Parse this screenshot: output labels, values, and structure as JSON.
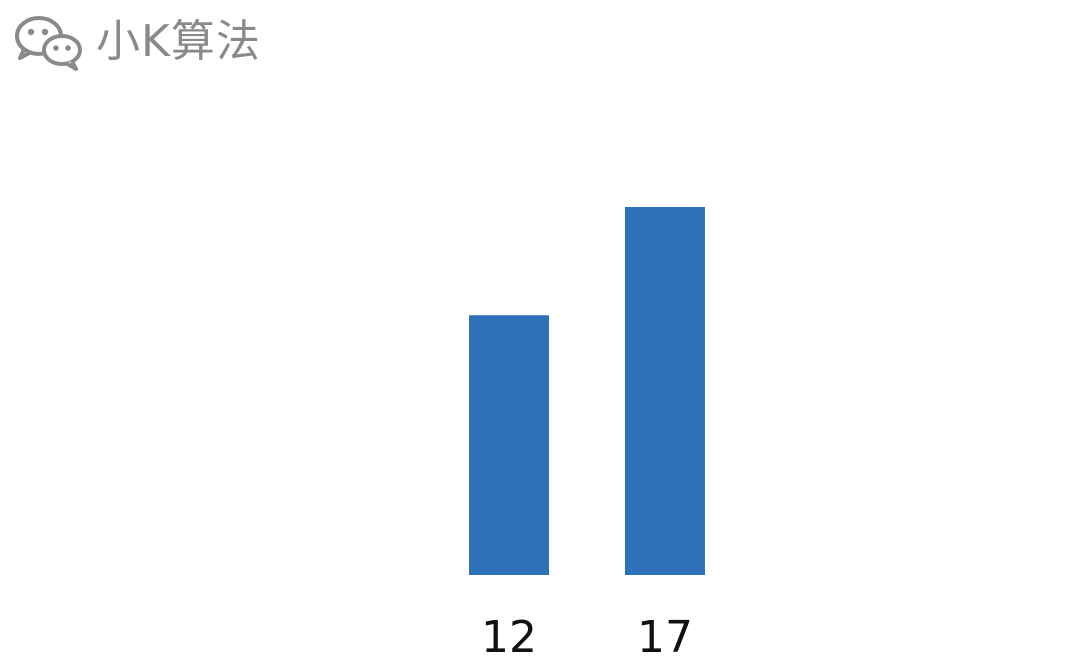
{
  "watermark": {
    "icon": "wechat-icon",
    "text": "小K算法",
    "color": "#8a8a8a"
  },
  "chart_data": {
    "type": "bar",
    "categories": [
      "12",
      "17"
    ],
    "values": [
      12,
      17
    ],
    "title": "",
    "xlabel": "",
    "ylabel": "",
    "ylim": [
      0,
      17
    ],
    "grid": false,
    "legend": "none",
    "bar_color": "#2d71b8"
  }
}
